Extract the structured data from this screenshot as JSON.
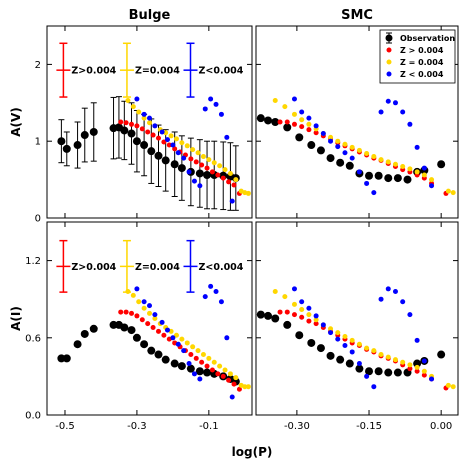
{
  "chart_data": [
    {
      "panel": "top-left",
      "type": "scatter",
      "title": "Bulge",
      "ylabel": "A(V)",
      "xlim": [
        -0.55,
        0.02
      ],
      "ylim": [
        0,
        2.5
      ],
      "xticks": [
        -0.5,
        -0.3,
        -0.1
      ],
      "xtick_labels": [],
      "yticks": [
        0,
        1,
        2
      ],
      "ytick_labels": [
        "0",
        "1",
        "2"
      ],
      "errorbar_legend": [
        {
          "label": "Z>0.004",
          "color": "#ff0000",
          "halfwidth": 0.35
        },
        {
          "label": "Z=0.004",
          "color": "#ffd700",
          "halfwidth": 0.35
        },
        {
          "label": "Z<0.004",
          "color": "#0000ff",
          "halfwidth": 0.35
        }
      ],
      "series": [
        {
          "marker": "errorbar",
          "color": "#000000",
          "x": [
            -0.51,
            -0.495,
            -0.465,
            -0.445,
            -0.42,
            -0.365,
            -0.35,
            -0.335,
            -0.315,
            -0.3,
            -0.28,
            -0.26,
            -0.24,
            -0.22,
            -0.195,
            -0.175,
            -0.15,
            -0.125,
            -0.105,
            -0.085,
            -0.06,
            -0.04,
            -0.025
          ],
          "y": [
            1.0,
            0.9,
            0.95,
            1.08,
            1.12,
            1.17,
            1.18,
            1.14,
            1.1,
            1.0,
            0.95,
            0.87,
            0.81,
            0.75,
            0.7,
            0.65,
            0.6,
            0.58,
            0.56,
            0.56,
            0.55,
            0.54,
            0.52
          ],
          "yerr": [
            0.28,
            0.22,
            0.3,
            0.35,
            0.38,
            0.4,
            0.4,
            0.38,
            0.4,
            0.4,
            0.4,
            0.42,
            0.4,
            0.4,
            0.42,
            0.42,
            0.44,
            0.44,
            0.44,
            0.44,
            0.44,
            0.44,
            0.42
          ]
        },
        {
          "color": "#ff0000",
          "x": [
            -0.345,
            -0.33,
            -0.315,
            -0.3,
            -0.285,
            -0.27,
            -0.255,
            -0.24,
            -0.225,
            -0.21,
            -0.195,
            -0.18,
            -0.165,
            -0.15,
            -0.135,
            -0.12,
            -0.105,
            -0.09,
            -0.075,
            -0.06,
            -0.045,
            -0.03,
            -0.015
          ],
          "y": [
            1.25,
            1.24,
            1.22,
            1.2,
            1.16,
            1.12,
            1.08,
            1.04,
            0.99,
            0.95,
            0.9,
            0.86,
            0.82,
            0.77,
            0.73,
            0.69,
            0.65,
            0.6,
            0.56,
            0.52,
            0.47,
            0.43,
            0.32
          ]
        },
        {
          "color": "#ffd700",
          "x": [
            -0.325,
            -0.31,
            -0.295,
            -0.28,
            -0.265,
            -0.25,
            -0.235,
            -0.22,
            -0.205,
            -0.19,
            -0.175,
            -0.16,
            -0.145,
            -0.13,
            -0.115,
            -0.1,
            -0.085,
            -0.07,
            -0.055,
            -0.04,
            -0.025,
            -0.01,
            0.0,
            0.01
          ],
          "y": [
            1.53,
            1.45,
            1.38,
            1.3,
            1.24,
            1.2,
            1.15,
            1.11,
            1.07,
            1.03,
            0.98,
            0.94,
            0.89,
            0.85,
            0.8,
            0.76,
            0.72,
            0.68,
            0.63,
            0.58,
            0.5,
            0.35,
            0.33,
            0.32
          ]
        },
        {
          "color": "#0000ff",
          "x": [
            -0.3,
            -0.28,
            -0.265,
            -0.25,
            -0.23,
            -0.215,
            -0.2,
            -0.185,
            -0.17,
            -0.155,
            -0.14,
            -0.125,
            -0.11,
            -0.095,
            -0.08,
            -0.065,
            -0.05,
            -0.035
          ],
          "y": [
            1.55,
            1.35,
            1.3,
            1.2,
            1.12,
            1.02,
            0.95,
            0.85,
            0.78,
            0.6,
            0.48,
            0.42,
            1.42,
            1.55,
            1.48,
            1.35,
            1.05,
            0.22
          ]
        }
      ]
    },
    {
      "panel": "top-right",
      "type": "scatter",
      "title": "SMC",
      "ylabel": "",
      "xlim": [
        -0.385,
        0.035
      ],
      "ylim": [
        0,
        2.5
      ],
      "xticks": [
        -0.3,
        -0.15,
        0.0
      ],
      "xtick_labels": [],
      "yticks": [
        0,
        1,
        2
      ],
      "ytick_labels": [],
      "legend": {
        "placement": "top-right",
        "entries": [
          {
            "label": "Observation",
            "color": "#000000",
            "marker": "errorbar"
          },
          {
            "label": "Z > 0.004",
            "color": "#ff0000",
            "marker": "dot"
          },
          {
            "label": "Z = 0.004",
            "color": "#ffd700",
            "marker": "dot"
          },
          {
            "label": "Z < 0.004",
            "color": "#0000ff",
            "marker": "dot"
          }
        ]
      },
      "series": [
        {
          "marker": "errorbar",
          "color": "#000000",
          "x": [
            -0.375,
            -0.36,
            -0.345,
            -0.32,
            -0.295,
            -0.27,
            -0.25,
            -0.23,
            -0.21,
            -0.19,
            -0.17,
            -0.15,
            -0.13,
            -0.11,
            -0.09,
            -0.07,
            -0.05,
            -0.035,
            0.0
          ],
          "y": [
            1.3,
            1.27,
            1.25,
            1.18,
            1.05,
            0.95,
            0.88,
            0.78,
            0.72,
            0.68,
            0.58,
            0.55,
            0.55,
            0.52,
            0.52,
            0.5,
            0.6,
            0.62,
            0.7
          ]
        },
        {
          "color": "#ff0000",
          "x": [
            -0.335,
            -0.32,
            -0.305,
            -0.29,
            -0.275,
            -0.26,
            -0.245,
            -0.23,
            -0.215,
            -0.2,
            -0.185,
            -0.17,
            -0.155,
            -0.14,
            -0.125,
            -0.11,
            -0.095,
            -0.08,
            -0.065,
            -0.05,
            -0.035,
            -0.02,
            0.01
          ],
          "y": [
            1.25,
            1.25,
            1.22,
            1.19,
            1.15,
            1.11,
            1.07,
            1.03,
            0.98,
            0.94,
            0.9,
            0.86,
            0.82,
            0.78,
            0.75,
            0.71,
            0.67,
            0.63,
            0.6,
            0.56,
            0.52,
            0.45,
            0.32
          ]
        },
        {
          "color": "#ffd700",
          "x": [
            -0.345,
            -0.325,
            -0.305,
            -0.29,
            -0.275,
            -0.26,
            -0.245,
            -0.23,
            -0.215,
            -0.2,
            -0.185,
            -0.17,
            -0.155,
            -0.14,
            -0.125,
            -0.11,
            -0.095,
            -0.08,
            -0.065,
            -0.05,
            -0.035,
            -0.02,
            0.015,
            0.025
          ],
          "y": [
            1.53,
            1.45,
            1.35,
            1.28,
            1.22,
            1.16,
            1.1,
            1.05,
            1.0,
            0.96,
            0.92,
            0.88,
            0.84,
            0.8,
            0.76,
            0.73,
            0.7,
            0.67,
            0.64,
            0.6,
            0.56,
            0.5,
            0.35,
            0.33
          ]
        },
        {
          "color": "#0000ff",
          "x": [
            -0.305,
            -0.29,
            -0.275,
            -0.26,
            -0.245,
            -0.23,
            -0.215,
            -0.2,
            -0.185,
            -0.17,
            -0.155,
            -0.14,
            -0.125,
            -0.11,
            -0.095,
            -0.08,
            -0.065,
            -0.05,
            -0.035,
            -0.02
          ],
          "y": [
            1.55,
            1.38,
            1.3,
            1.2,
            1.1,
            1.0,
            0.93,
            0.85,
            0.78,
            0.6,
            0.45,
            0.33,
            1.38,
            1.52,
            1.5,
            1.38,
            1.22,
            0.92,
            0.65,
            0.42
          ]
        }
      ]
    },
    {
      "panel": "bottom-left",
      "type": "scatter",
      "title": "",
      "ylabel": "A(I)",
      "xlim": [
        -0.55,
        0.02
      ],
      "ylim": [
        0,
        1.5
      ],
      "xticks": [
        -0.5,
        -0.3,
        -0.1
      ],
      "xtick_labels": [
        "-0.5",
        "-0.3",
        "-0.1"
      ],
      "yticks": [
        0,
        0.6,
        1.2
      ],
      "ytick_labels": [
        "0.0",
        "0.6",
        "1.2"
      ],
      "errorbar_legend": [
        {
          "label": "Z>0.004",
          "color": "#ff0000",
          "halfwidth": 0.2
        },
        {
          "label": "Z=0.004",
          "color": "#ffd700",
          "halfwidth": 0.2
        },
        {
          "label": "Z<0.004",
          "color": "#0000ff",
          "halfwidth": 0.2
        }
      ],
      "series": [
        {
          "marker": "errorbar",
          "color": "#000000",
          "x": [
            -0.51,
            -0.495,
            -0.465,
            -0.445,
            -0.42,
            -0.365,
            -0.35,
            -0.335,
            -0.315,
            -0.3,
            -0.28,
            -0.26,
            -0.24,
            -0.22,
            -0.195,
            -0.175,
            -0.15,
            -0.125,
            -0.105,
            -0.085,
            -0.06,
            -0.04,
            -0.025
          ],
          "y": [
            0.44,
            0.44,
            0.55,
            0.63,
            0.67,
            0.7,
            0.7,
            0.68,
            0.66,
            0.6,
            0.55,
            0.5,
            0.47,
            0.43,
            0.4,
            0.38,
            0.36,
            0.34,
            0.33,
            0.32,
            0.3,
            0.28,
            0.26
          ]
        },
        {
          "color": "#ff0000",
          "x": [
            -0.345,
            -0.33,
            -0.315,
            -0.3,
            -0.285,
            -0.27,
            -0.255,
            -0.24,
            -0.225,
            -0.21,
            -0.195,
            -0.18,
            -0.165,
            -0.15,
            -0.135,
            -0.12,
            -0.105,
            -0.09,
            -0.075,
            -0.06,
            -0.045,
            -0.03,
            -0.015
          ],
          "y": [
            0.8,
            0.8,
            0.79,
            0.77,
            0.74,
            0.71,
            0.68,
            0.65,
            0.62,
            0.59,
            0.56,
            0.53,
            0.5,
            0.47,
            0.44,
            0.41,
            0.38,
            0.35,
            0.32,
            0.3,
            0.27,
            0.24,
            0.2
          ]
        },
        {
          "color": "#ffd700",
          "x": [
            -0.325,
            -0.31,
            -0.295,
            -0.28,
            -0.265,
            -0.25,
            -0.235,
            -0.22,
            -0.205,
            -0.19,
            -0.175,
            -0.16,
            -0.145,
            -0.13,
            -0.115,
            -0.1,
            -0.085,
            -0.07,
            -0.055,
            -0.04,
            -0.025,
            -0.01,
            0.0,
            0.01
          ],
          "y": [
            0.96,
            0.93,
            0.88,
            0.83,
            0.79,
            0.75,
            0.71,
            0.68,
            0.65,
            0.62,
            0.59,
            0.56,
            0.53,
            0.5,
            0.47,
            0.44,
            0.41,
            0.38,
            0.35,
            0.32,
            0.29,
            0.23,
            0.22,
            0.22
          ]
        },
        {
          "color": "#0000ff",
          "x": [
            -0.3,
            -0.28,
            -0.265,
            -0.25,
            -0.23,
            -0.215,
            -0.2,
            -0.185,
            -0.17,
            -0.155,
            -0.14,
            -0.125,
            -0.11,
            -0.095,
            -0.08,
            -0.065,
            -0.05,
            -0.035
          ],
          "y": [
            0.98,
            0.88,
            0.85,
            0.78,
            0.72,
            0.66,
            0.6,
            0.55,
            0.5,
            0.4,
            0.32,
            0.28,
            0.92,
            1.0,
            0.96,
            0.88,
            0.6,
            0.14
          ]
        }
      ]
    },
    {
      "panel": "bottom-right",
      "type": "scatter",
      "title": "",
      "ylabel": "",
      "xlim": [
        -0.385,
        0.035
      ],
      "ylim": [
        0,
        1.5
      ],
      "xticks": [
        -0.3,
        -0.15,
        0.0
      ],
      "xtick_labels": [
        "-0.30",
        "-0.15",
        "0.00"
      ],
      "yticks": [
        0,
        0.6,
        1.2
      ],
      "ytick_labels": [],
      "series": [
        {
          "marker": "errorbar",
          "color": "#000000",
          "x": [
            -0.375,
            -0.36,
            -0.345,
            -0.32,
            -0.295,
            -0.27,
            -0.25,
            -0.23,
            -0.21,
            -0.19,
            -0.17,
            -0.15,
            -0.13,
            -0.11,
            -0.09,
            -0.07,
            -0.05,
            -0.035,
            0.0
          ],
          "y": [
            0.78,
            0.77,
            0.75,
            0.7,
            0.62,
            0.56,
            0.52,
            0.46,
            0.43,
            0.4,
            0.36,
            0.34,
            0.34,
            0.33,
            0.33,
            0.33,
            0.4,
            0.42,
            0.47
          ]
        },
        {
          "color": "#ff0000",
          "x": [
            -0.335,
            -0.32,
            -0.305,
            -0.29,
            -0.275,
            -0.26,
            -0.245,
            -0.23,
            -0.215,
            -0.2,
            -0.185,
            -0.17,
            -0.155,
            -0.14,
            -0.125,
            -0.11,
            -0.095,
            -0.08,
            -0.065,
            -0.05,
            -0.035,
            -0.02,
            0.01
          ],
          "y": [
            0.8,
            0.8,
            0.78,
            0.76,
            0.73,
            0.71,
            0.68,
            0.65,
            0.62,
            0.59,
            0.56,
            0.54,
            0.51,
            0.49,
            0.46,
            0.44,
            0.42,
            0.39,
            0.36,
            0.34,
            0.31,
            0.28,
            0.21
          ]
        },
        {
          "color": "#ffd700",
          "x": [
            -0.345,
            -0.325,
            -0.305,
            -0.29,
            -0.275,
            -0.26,
            -0.245,
            -0.23,
            -0.215,
            -0.2,
            -0.185,
            -0.17,
            -0.155,
            -0.14,
            -0.125,
            -0.11,
            -0.095,
            -0.08,
            -0.065,
            -0.05,
            -0.035,
            -0.02,
            0.015,
            0.025
          ],
          "y": [
            0.96,
            0.92,
            0.86,
            0.82,
            0.78,
            0.74,
            0.7,
            0.67,
            0.64,
            0.61,
            0.58,
            0.55,
            0.52,
            0.5,
            0.47,
            0.45,
            0.43,
            0.41,
            0.39,
            0.37,
            0.34,
            0.3,
            0.23,
            0.22
          ]
        },
        {
          "color": "#0000ff",
          "x": [
            -0.305,
            -0.29,
            -0.275,
            -0.26,
            -0.245,
            -0.23,
            -0.215,
            -0.2,
            -0.185,
            -0.17,
            -0.155,
            -0.14,
            -0.125,
            -0.11,
            -0.095,
            -0.08,
            -0.065,
            -0.05,
            -0.035,
            -0.02
          ],
          "y": [
            0.98,
            0.88,
            0.83,
            0.77,
            0.7,
            0.64,
            0.59,
            0.54,
            0.49,
            0.4,
            0.3,
            0.22,
            0.9,
            0.98,
            0.96,
            0.88,
            0.78,
            0.58,
            0.42,
            0.28
          ]
        }
      ]
    }
  ],
  "xlabel": "log(P)"
}
